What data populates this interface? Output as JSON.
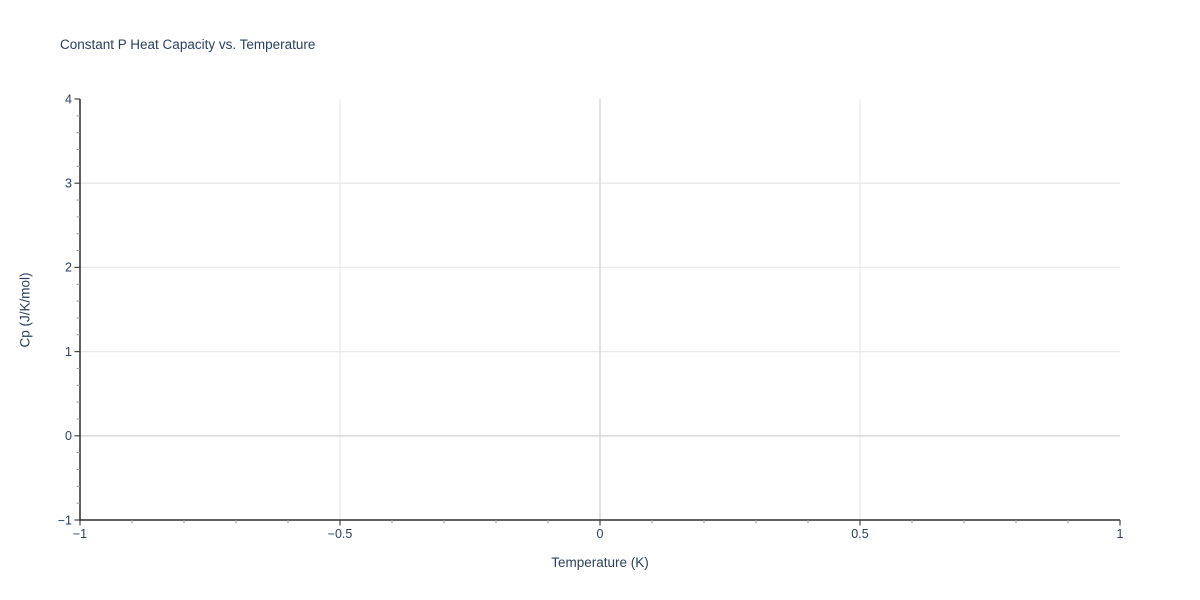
{
  "chart_data": {
    "type": "line",
    "title": "Constant P Heat Capacity vs. Temperature",
    "xlabel": "Temperature (K)",
    "ylabel": "Cp (J/K/mol)",
    "xlim": [
      -1,
      1
    ],
    "ylim": [
      -1,
      4
    ],
    "xticks": [
      -1,
      -0.5,
      0,
      0.5,
      1
    ],
    "yticks": [
      -1,
      0,
      1,
      2,
      3,
      4
    ],
    "x_minor_step": 0.1,
    "y_minor_step": 0.2,
    "grid": true,
    "zeroline": true,
    "legend": false,
    "series": []
  },
  "colors": {
    "background": "#ffffff",
    "text": "#2a3f5f",
    "spine": "#2b2b2b",
    "grid": "#eaeaea",
    "zeroline": "#d6d6d6",
    "tick_major": "#444444",
    "tick_minor": "#999999"
  }
}
